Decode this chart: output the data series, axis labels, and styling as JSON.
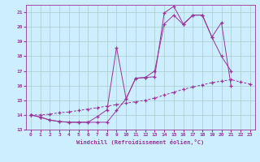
{
  "xlabel": "Windchill (Refroidissement éolien,°C)",
  "background_color": "#cceeff",
  "grid_color": "#aacccc",
  "line_color": "#993399",
  "xlim": [
    -0.5,
    23.5
  ],
  "ylim": [
    13,
    21.5
  ],
  "xticks": [
    0,
    1,
    2,
    3,
    4,
    5,
    6,
    7,
    8,
    9,
    10,
    11,
    12,
    13,
    14,
    15,
    16,
    17,
    18,
    19,
    20,
    21,
    22,
    23
  ],
  "yticks": [
    13,
    14,
    15,
    16,
    17,
    18,
    19,
    20,
    21
  ],
  "line1_x": [
    0,
    1,
    2,
    3,
    4,
    5,
    6,
    7,
    8,
    9,
    10,
    11,
    12,
    13,
    14,
    15,
    16,
    17,
    18,
    19,
    20,
    21,
    22,
    23
  ],
  "line1_y": [
    14.0,
    13.85,
    13.65,
    13.55,
    13.5,
    13.5,
    13.5,
    13.9,
    14.35,
    18.6,
    15.1,
    16.5,
    16.55,
    16.6,
    20.95,
    21.4,
    20.2,
    20.8,
    20.8,
    19.3,
    18.0,
    17.0,
    null,
    null
  ],
  "line2_x": [
    0,
    1,
    2,
    3,
    4,
    5,
    6,
    7,
    8,
    9,
    10,
    11,
    12,
    13,
    14,
    15,
    16,
    17,
    18,
    19,
    20,
    21,
    22,
    23
  ],
  "line2_y": [
    14.0,
    13.85,
    13.65,
    13.55,
    13.5,
    13.5,
    13.5,
    13.5,
    13.5,
    14.3,
    15.1,
    16.5,
    16.55,
    17.0,
    20.2,
    20.8,
    20.15,
    20.8,
    20.8,
    19.3,
    20.3,
    16.0,
    null,
    null
  ],
  "line3_x": [
    0,
    1,
    2,
    3,
    4,
    5,
    6,
    7,
    8,
    9,
    10,
    11,
    12,
    13,
    14,
    15,
    16,
    17,
    18,
    19,
    20,
    21,
    22,
    23
  ],
  "line3_y": [
    14.0,
    14.0,
    14.05,
    14.15,
    14.2,
    14.3,
    14.4,
    14.5,
    14.6,
    14.7,
    14.8,
    14.9,
    15.0,
    15.15,
    15.35,
    15.55,
    15.75,
    15.9,
    16.05,
    16.2,
    16.3,
    16.4,
    16.25,
    16.1
  ]
}
